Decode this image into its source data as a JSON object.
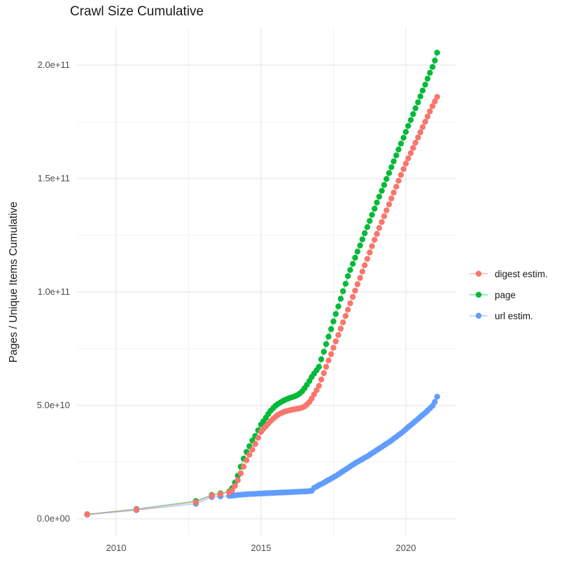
{
  "title": "Crawl Size Cumulative",
  "y_axis_title": "Pages / Unique Items Cumulative",
  "colors": {
    "digest": "#F8766D",
    "page": "#00BA38",
    "url": "#619CFF",
    "grid_major": "#E3E3E3",
    "grid_minor": "#F1F1F1",
    "tick_text": "#4D4D4D",
    "text": "#1A1A1A",
    "background": "#FFFFFF"
  },
  "legend": {
    "position": "right",
    "items": [
      {
        "id": "digest",
        "label": "digest estim."
      },
      {
        "id": "page",
        "label": "page"
      },
      {
        "id": "url",
        "label": "url estim."
      }
    ]
  },
  "x_axis": {
    "tick_labels": [
      "2010",
      "2015",
      "2020"
    ],
    "tick_years": [
      2010,
      2015,
      2020
    ],
    "minor_years": [
      2012.5,
      2017.5
    ]
  },
  "y_axis": {
    "tick_labels": [
      "0.0e+00",
      "5.0e+10",
      "1.0e+11",
      "1.5e+11",
      "2.0e+11"
    ],
    "tick_values_e9": [
      0,
      50,
      100,
      150,
      200
    ],
    "minor_values_e9": [
      25,
      75,
      125,
      175
    ]
  },
  "chart_data": {
    "type": "scatter",
    "mode": "points+lines",
    "x_unit": "decimal year",
    "y_unit": "pages / unique items, billions (1e9)",
    "xlim": [
      2008.65,
      2021.74
    ],
    "ylim_e9": [
      -7,
      216.5
    ],
    "grid": true,
    "legend_position": "right",
    "series": [
      {
        "name": "page",
        "color_id": "page",
        "points": [
          [
            2009.0,
            2.0
          ],
          [
            2010.7,
            4.3
          ],
          [
            2012.75,
            7.8
          ],
          [
            2013.3,
            10.5
          ],
          [
            2013.6,
            11.2
          ],
          [
            2013.9,
            12.0
          ],
          [
            2014.0,
            13.5
          ],
          [
            2014.1,
            16.0
          ],
          [
            2014.2,
            19.0
          ],
          [
            2014.3,
            23.0
          ],
          [
            2014.4,
            26.5
          ],
          [
            2014.5,
            29.5
          ],
          [
            2014.6,
            32.0
          ],
          [
            2014.7,
            34.5
          ],
          [
            2014.8,
            36.5
          ],
          [
            2014.9,
            39.0
          ],
          [
            2015.0,
            41.5
          ],
          [
            2015.08,
            43.0
          ],
          [
            2015.17,
            44.6
          ],
          [
            2015.25,
            46.2
          ],
          [
            2015.33,
            47.6
          ],
          [
            2015.42,
            48.8
          ],
          [
            2015.5,
            49.8
          ],
          [
            2015.58,
            50.6
          ],
          [
            2015.67,
            51.3
          ],
          [
            2015.75,
            51.9
          ],
          [
            2015.83,
            52.4
          ],
          [
            2015.92,
            52.9
          ],
          [
            2016.0,
            53.3
          ],
          [
            2016.08,
            53.6
          ],
          [
            2016.17,
            54.0
          ],
          [
            2016.25,
            54.5
          ],
          [
            2016.33,
            55.2
          ],
          [
            2016.42,
            56.2
          ],
          [
            2016.5,
            57.5
          ],
          [
            2016.58,
            59.0
          ],
          [
            2016.67,
            60.7
          ],
          [
            2016.75,
            62.5
          ],
          [
            2016.83,
            64.0
          ],
          [
            2016.92,
            65.5
          ],
          [
            2017.0,
            67.0
          ],
          [
            2017.08,
            70.3
          ],
          [
            2017.17,
            73.6
          ],
          [
            2017.25,
            77.0
          ],
          [
            2017.33,
            80.3
          ],
          [
            2017.42,
            83.6
          ],
          [
            2017.5,
            87.0
          ],
          [
            2017.58,
            90.3
          ],
          [
            2017.67,
            93.6
          ],
          [
            2017.75,
            97.0
          ],
          [
            2017.83,
            100.3
          ],
          [
            2017.92,
            103.6
          ],
          [
            2018.0,
            107.0
          ],
          [
            2018.08,
            109.7
          ],
          [
            2018.17,
            112.4
          ],
          [
            2018.25,
            115.1
          ],
          [
            2018.33,
            117.8
          ],
          [
            2018.42,
            120.5
          ],
          [
            2018.5,
            123.2
          ],
          [
            2018.58,
            125.9
          ],
          [
            2018.67,
            128.6
          ],
          [
            2018.75,
            131.3
          ],
          [
            2018.83,
            134.0
          ],
          [
            2018.92,
            136.7
          ],
          [
            2019.0,
            139.4
          ],
          [
            2019.08,
            142.0
          ],
          [
            2019.17,
            144.6
          ],
          [
            2019.25,
            147.2
          ],
          [
            2019.33,
            149.8
          ],
          [
            2019.42,
            152.4
          ],
          [
            2019.5,
            155.0
          ],
          [
            2019.58,
            157.6
          ],
          [
            2019.67,
            160.2
          ],
          [
            2019.75,
            162.8
          ],
          [
            2019.83,
            165.4
          ],
          [
            2019.92,
            168.0
          ],
          [
            2020.0,
            170.6
          ],
          [
            2020.08,
            173.2
          ],
          [
            2020.17,
            175.8
          ],
          [
            2020.25,
            178.4
          ],
          [
            2020.33,
            181.0
          ],
          [
            2020.42,
            183.6
          ],
          [
            2020.5,
            186.2
          ],
          [
            2020.58,
            188.8
          ],
          [
            2020.67,
            191.4
          ],
          [
            2020.75,
            194.0
          ],
          [
            2020.83,
            196.6
          ],
          [
            2020.92,
            199.2
          ],
          [
            2021.0,
            202.0
          ],
          [
            2021.08,
            205.5
          ]
        ]
      },
      {
        "name": "url estim.",
        "color_id": "url",
        "points": [
          [
            2009.0,
            1.8
          ],
          [
            2010.7,
            3.8
          ],
          [
            2012.75,
            6.6
          ],
          [
            2013.3,
            9.6
          ],
          [
            2013.6,
            9.9
          ],
          [
            2013.9,
            10.1
          ],
          [
            2014.0,
            10.2
          ],
          [
            2014.1,
            10.35
          ],
          [
            2014.2,
            10.5
          ],
          [
            2014.3,
            10.6
          ],
          [
            2014.4,
            10.7
          ],
          [
            2014.5,
            10.8
          ],
          [
            2014.6,
            10.9
          ],
          [
            2014.7,
            10.95
          ],
          [
            2014.8,
            11.0
          ],
          [
            2014.9,
            11.1
          ],
          [
            2015.0,
            11.15
          ],
          [
            2015.08,
            11.2
          ],
          [
            2015.17,
            11.25
          ],
          [
            2015.25,
            11.3
          ],
          [
            2015.33,
            11.35
          ],
          [
            2015.42,
            11.4
          ],
          [
            2015.5,
            11.45
          ],
          [
            2015.58,
            11.5
          ],
          [
            2015.67,
            11.55
          ],
          [
            2015.75,
            11.6
          ],
          [
            2015.83,
            11.65
          ],
          [
            2015.92,
            11.7
          ],
          [
            2016.0,
            11.75
          ],
          [
            2016.08,
            11.8
          ],
          [
            2016.17,
            11.85
          ],
          [
            2016.25,
            11.9
          ],
          [
            2016.33,
            11.95
          ],
          [
            2016.42,
            12.0
          ],
          [
            2016.5,
            12.05
          ],
          [
            2016.58,
            12.1
          ],
          [
            2016.67,
            12.2
          ],
          [
            2016.75,
            12.3
          ],
          [
            2016.83,
            13.6
          ],
          [
            2016.92,
            14.2
          ],
          [
            2017.0,
            14.8
          ],
          [
            2017.08,
            15.3
          ],
          [
            2017.17,
            15.9
          ],
          [
            2017.25,
            16.5
          ],
          [
            2017.33,
            17.1
          ],
          [
            2017.42,
            17.7
          ],
          [
            2017.5,
            18.3
          ],
          [
            2017.58,
            18.9
          ],
          [
            2017.67,
            19.6
          ],
          [
            2017.75,
            20.3
          ],
          [
            2017.83,
            21.0
          ],
          [
            2017.92,
            21.7
          ],
          [
            2018.0,
            22.4
          ],
          [
            2018.08,
            23.1
          ],
          [
            2018.17,
            23.8
          ],
          [
            2018.25,
            24.5
          ],
          [
            2018.33,
            25.1
          ],
          [
            2018.42,
            25.7
          ],
          [
            2018.5,
            26.3
          ],
          [
            2018.58,
            26.9
          ],
          [
            2018.67,
            27.5
          ],
          [
            2018.75,
            28.2
          ],
          [
            2018.83,
            28.9
          ],
          [
            2018.92,
            29.6
          ],
          [
            2019.0,
            30.3
          ],
          [
            2019.08,
            31.0
          ],
          [
            2019.17,
            31.7
          ],
          [
            2019.25,
            32.4
          ],
          [
            2019.33,
            33.1
          ],
          [
            2019.42,
            33.8
          ],
          [
            2019.5,
            34.5
          ],
          [
            2019.58,
            35.3
          ],
          [
            2019.67,
            36.1
          ],
          [
            2019.75,
            36.9
          ],
          [
            2019.83,
            37.7
          ],
          [
            2019.92,
            38.6
          ],
          [
            2020.0,
            39.5
          ],
          [
            2020.08,
            40.4
          ],
          [
            2020.17,
            41.3
          ],
          [
            2020.25,
            42.2
          ],
          [
            2020.33,
            43.1
          ],
          [
            2020.42,
            44.0
          ],
          [
            2020.5,
            44.9
          ],
          [
            2020.58,
            45.8
          ],
          [
            2020.67,
            46.7
          ],
          [
            2020.75,
            47.7
          ],
          [
            2020.83,
            48.7
          ],
          [
            2020.92,
            49.8
          ],
          [
            2021.0,
            51.5
          ],
          [
            2021.08,
            53.8
          ]
        ]
      },
      {
        "name": "digest estim.",
        "color_id": "digest",
        "points": [
          [
            2009.0,
            1.9
          ],
          [
            2010.7,
            4.1
          ],
          [
            2012.75,
            7.3
          ],
          [
            2013.3,
            10.2
          ],
          [
            2013.6,
            10.9
          ],
          [
            2013.9,
            11.6
          ],
          [
            2014.0,
            12.5
          ],
          [
            2014.1,
            14.5
          ],
          [
            2014.2,
            17.0
          ],
          [
            2014.3,
            20.0
          ],
          [
            2014.4,
            23.0
          ],
          [
            2014.5,
            25.8
          ],
          [
            2014.6,
            28.2
          ],
          [
            2014.7,
            30.5
          ],
          [
            2014.8,
            33.0
          ],
          [
            2014.9,
            35.7
          ],
          [
            2015.0,
            38.3
          ],
          [
            2015.08,
            39.6
          ],
          [
            2015.17,
            40.8
          ],
          [
            2015.25,
            42.0
          ],
          [
            2015.33,
            43.1
          ],
          [
            2015.42,
            44.1
          ],
          [
            2015.5,
            45.0
          ],
          [
            2015.58,
            45.8
          ],
          [
            2015.67,
            46.4
          ],
          [
            2015.75,
            46.9
          ],
          [
            2015.83,
            47.3
          ],
          [
            2015.92,
            47.6
          ],
          [
            2016.0,
            47.9
          ],
          [
            2016.08,
            48.1
          ],
          [
            2016.17,
            48.3
          ],
          [
            2016.25,
            48.5
          ],
          [
            2016.33,
            48.7
          ],
          [
            2016.42,
            49.0
          ],
          [
            2016.5,
            49.5
          ],
          [
            2016.58,
            50.3
          ],
          [
            2016.67,
            51.5
          ],
          [
            2016.75,
            53.0
          ],
          [
            2016.83,
            54.8
          ],
          [
            2016.92,
            56.7
          ],
          [
            2017.0,
            58.6
          ],
          [
            2017.08,
            61.4
          ],
          [
            2017.17,
            64.2
          ],
          [
            2017.25,
            67.0
          ],
          [
            2017.33,
            69.8
          ],
          [
            2017.42,
            72.6
          ],
          [
            2017.5,
            75.4
          ],
          [
            2017.58,
            78.2
          ],
          [
            2017.67,
            81.0
          ],
          [
            2017.75,
            83.8
          ],
          [
            2017.83,
            86.6
          ],
          [
            2017.92,
            89.4
          ],
          [
            2018.0,
            92.2
          ],
          [
            2018.08,
            95.0
          ],
          [
            2018.17,
            97.8
          ],
          [
            2018.25,
            100.6
          ],
          [
            2018.33,
            103.4
          ],
          [
            2018.42,
            106.2
          ],
          [
            2018.5,
            109.0
          ],
          [
            2018.58,
            111.8
          ],
          [
            2018.67,
            114.6
          ],
          [
            2018.75,
            117.4
          ],
          [
            2018.83,
            120.2
          ],
          [
            2018.92,
            123.0
          ],
          [
            2019.0,
            125.6
          ],
          [
            2019.08,
            128.2
          ],
          [
            2019.17,
            130.8
          ],
          [
            2019.25,
            133.4
          ],
          [
            2019.33,
            136.0
          ],
          [
            2019.42,
            138.6
          ],
          [
            2019.5,
            141.2
          ],
          [
            2019.58,
            143.8
          ],
          [
            2019.67,
            146.4
          ],
          [
            2019.75,
            149.0
          ],
          [
            2019.83,
            151.6
          ],
          [
            2019.92,
            154.2
          ],
          [
            2020.0,
            156.6
          ],
          [
            2020.08,
            158.9
          ],
          [
            2020.17,
            161.2
          ],
          [
            2020.25,
            163.5
          ],
          [
            2020.33,
            165.8
          ],
          [
            2020.42,
            168.1
          ],
          [
            2020.5,
            170.4
          ],
          [
            2020.58,
            172.7
          ],
          [
            2020.67,
            175.0
          ],
          [
            2020.75,
            177.3
          ],
          [
            2020.83,
            179.6
          ],
          [
            2020.92,
            181.9
          ],
          [
            2021.0,
            184.0
          ],
          [
            2021.08,
            186.0
          ]
        ]
      }
    ]
  }
}
